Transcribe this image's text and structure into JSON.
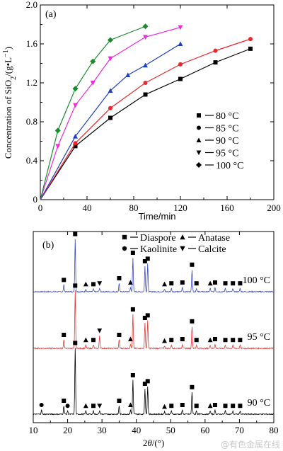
{
  "chart_data": [
    {
      "type": "line",
      "panel_label": "(a)",
      "xlabel": "Time/min",
      "ylabel_parts": [
        "Concentration of SiO",
        "2",
        "/(g•L",
        "−1",
        ")"
      ],
      "xlim": [
        0,
        200
      ],
      "ylim": [
        0,
        2.0
      ],
      "xticks": [
        "0",
        "40",
        "80",
        "120",
        "160",
        "200"
      ],
      "yticks": [
        "0",
        "0.4",
        "0.8",
        "1.2",
        "1.6",
        "2.0"
      ],
      "legend_position": "right",
      "series": [
        {
          "name": "80 °C",
          "marker": "square",
          "color": "#000000",
          "x": [
            0,
            30,
            60,
            90,
            120,
            150,
            180
          ],
          "y": [
            0,
            0.55,
            0.84,
            1.08,
            1.24,
            1.41,
            1.55
          ]
        },
        {
          "name": "85 °C",
          "marker": "circle",
          "color": "#e8262b",
          "x": [
            0,
            30,
            60,
            90,
            120,
            150,
            180
          ],
          "y": [
            0,
            0.58,
            0.94,
            1.2,
            1.39,
            1.53,
            1.65
          ]
        },
        {
          "name": "90 °C",
          "marker": "triangle",
          "color": "#1d3fc8",
          "x": [
            0,
            30,
            60,
            75,
            90,
            120
          ],
          "y": [
            0,
            0.65,
            1.12,
            1.28,
            1.38,
            1.6
          ]
        },
        {
          "name": "95 °C",
          "marker": "triangle-down",
          "color": "#ee2ad8",
          "x": [
            0,
            15,
            30,
            45,
            60,
            90,
            120
          ],
          "y": [
            0,
            0.55,
            0.97,
            1.2,
            1.45,
            1.67,
            1.77
          ]
        },
        {
          "name": "100 °C",
          "marker": "diamond",
          "color": "#1e8a2e",
          "x": [
            0,
            15,
            30,
            45,
            60,
            90
          ],
          "y": [
            0,
            0.71,
            1.14,
            1.42,
            1.64,
            1.78
          ]
        }
      ]
    },
    {
      "type": "line",
      "panel_label": "(b)",
      "xlabel": "2θ/(°)",
      "xlim": [
        10,
        80
      ],
      "xticks": [
        "10",
        "20",
        "30",
        "40",
        "50",
        "60",
        "70",
        "80"
      ],
      "legend_position": "top",
      "phases": [
        {
          "name": "Diaspore",
          "marker": "square"
        },
        {
          "name": "Anatase",
          "marker": "triangle"
        },
        {
          "name": "Kaolinite",
          "marker": "circle"
        },
        {
          "name": "Calcite",
          "marker": "triangle-down"
        }
      ],
      "series": [
        {
          "name": "100 °C",
          "color": "#3b4cc0",
          "offset": 2,
          "peaks": [
            {
              "x": 18.9,
              "h": 0.08,
              "m": "square"
            },
            {
              "x": 22.2,
              "h": 0.62,
              "m": "square"
            },
            {
              "x": 25.3,
              "h": 0.03,
              "m": "triangle"
            },
            {
              "x": 27.5,
              "h": 0.03,
              "m": "square"
            },
            {
              "x": 29.3,
              "h": 0.04,
              "m": "triangle-down"
            },
            {
              "x": 35.0,
              "h": 0.1,
              "m": "square"
            },
            {
              "x": 38.3,
              "h": 0.05,
              "m": "triangle"
            },
            {
              "x": 39.0,
              "h": 0.4,
              "m": "square"
            },
            {
              "x": 42.5,
              "h": 0.3,
              "m": "square"
            },
            {
              "x": 43.3,
              "h": 0.33,
              "m": "square"
            },
            {
              "x": 48.2,
              "h": 0.03,
              "m": "triangle"
            },
            {
              "x": 50.2,
              "h": 0.04,
              "m": "square"
            },
            {
              "x": 53.4,
              "h": 0.05,
              "m": "square"
            },
            {
              "x": 56.2,
              "h": 0.26,
              "m": "square"
            },
            {
              "x": 57.5,
              "h": 0.04,
              "m": "square"
            },
            {
              "x": 61.5,
              "h": 0.04,
              "m": "triangle"
            },
            {
              "x": 62.9,
              "h": 0.05,
              "m": "square"
            },
            {
              "x": 65.9,
              "h": 0.04,
              "m": "square"
            },
            {
              "x": 68.1,
              "h": 0.04,
              "m": "square"
            },
            {
              "x": 70.2,
              "h": 0.04,
              "m": "square"
            }
          ]
        },
        {
          "name": "95 °C",
          "color": "#e53935",
          "offset": 1,
          "peaks": [
            {
              "x": 18.9,
              "h": 0.1,
              "m": "square"
            },
            {
              "x": 22.2,
              "h": 0.68,
              "m": "square"
            },
            {
              "x": 25.3,
              "h": 0.04,
              "m": "triangle"
            },
            {
              "x": 27.5,
              "h": 0.04,
              "m": "square"
            },
            {
              "x": 29.3,
              "h": 0.15,
              "m": "triangle-down"
            },
            {
              "x": 35.0,
              "h": 0.1,
              "m": "square"
            },
            {
              "x": 38.3,
              "h": 0.05,
              "m": "triangle"
            },
            {
              "x": 39.0,
              "h": 0.4,
              "m": "square"
            },
            {
              "x": 42.5,
              "h": 0.3,
              "m": "square"
            },
            {
              "x": 43.3,
              "h": 0.33,
              "m": "square"
            },
            {
              "x": 48.2,
              "h": 0.03,
              "m": "triangle"
            },
            {
              "x": 50.2,
              "h": 0.04,
              "m": "square"
            },
            {
              "x": 53.4,
              "h": 0.05,
              "m": "square"
            },
            {
              "x": 56.2,
              "h": 0.26,
              "m": "square"
            },
            {
              "x": 57.5,
              "h": 0.04,
              "m": "square"
            },
            {
              "x": 61.5,
              "h": 0.04,
              "m": "triangle"
            },
            {
              "x": 62.9,
              "h": 0.05,
              "m": "square"
            },
            {
              "x": 65.9,
              "h": 0.04,
              "m": "square"
            },
            {
              "x": 68.1,
              "h": 0.04,
              "m": "square"
            },
            {
              "x": 70.2,
              "h": 0.04,
              "m": "square"
            }
          ]
        },
        {
          "name": "90 °C",
          "color": "#000000",
          "offset": 0,
          "peaks": [
            {
              "x": 12.4,
              "h": 0.05,
              "m": "circle"
            },
            {
              "x": 18.9,
              "h": 0.1,
              "m": "square"
            },
            {
              "x": 20.0,
              "h": 0.04,
              "m": "circle"
            },
            {
              "x": 22.2,
              "h": 0.78,
              "m": "square"
            },
            {
              "x": 25.3,
              "h": 0.04,
              "m": "triangle"
            },
            {
              "x": 27.5,
              "h": 0.04,
              "m": "square"
            },
            {
              "x": 29.3,
              "h": 0.04,
              "m": "triangle-down"
            },
            {
              "x": 35.0,
              "h": 0.1,
              "m": "square"
            },
            {
              "x": 38.3,
              "h": 0.05,
              "m": "triangle"
            },
            {
              "x": 39.0,
              "h": 0.4,
              "m": "square"
            },
            {
              "x": 42.5,
              "h": 0.3,
              "m": "square"
            },
            {
              "x": 43.3,
              "h": 0.33,
              "m": "square"
            },
            {
              "x": 48.2,
              "h": 0.03,
              "m": "triangle"
            },
            {
              "x": 50.2,
              "h": 0.04,
              "m": "square"
            },
            {
              "x": 53.4,
              "h": 0.05,
              "m": "square"
            },
            {
              "x": 56.2,
              "h": 0.26,
              "m": "square"
            },
            {
              "x": 57.5,
              "h": 0.04,
              "m": "square"
            },
            {
              "x": 61.5,
              "h": 0.04,
              "m": "triangle"
            },
            {
              "x": 62.9,
              "h": 0.05,
              "m": "square"
            },
            {
              "x": 65.9,
              "h": 0.04,
              "m": "square"
            },
            {
              "x": 68.1,
              "h": 0.04,
              "m": "square"
            },
            {
              "x": 70.2,
              "h": 0.04,
              "m": "square"
            }
          ]
        }
      ]
    }
  ],
  "watermark": "@有色金属在线"
}
